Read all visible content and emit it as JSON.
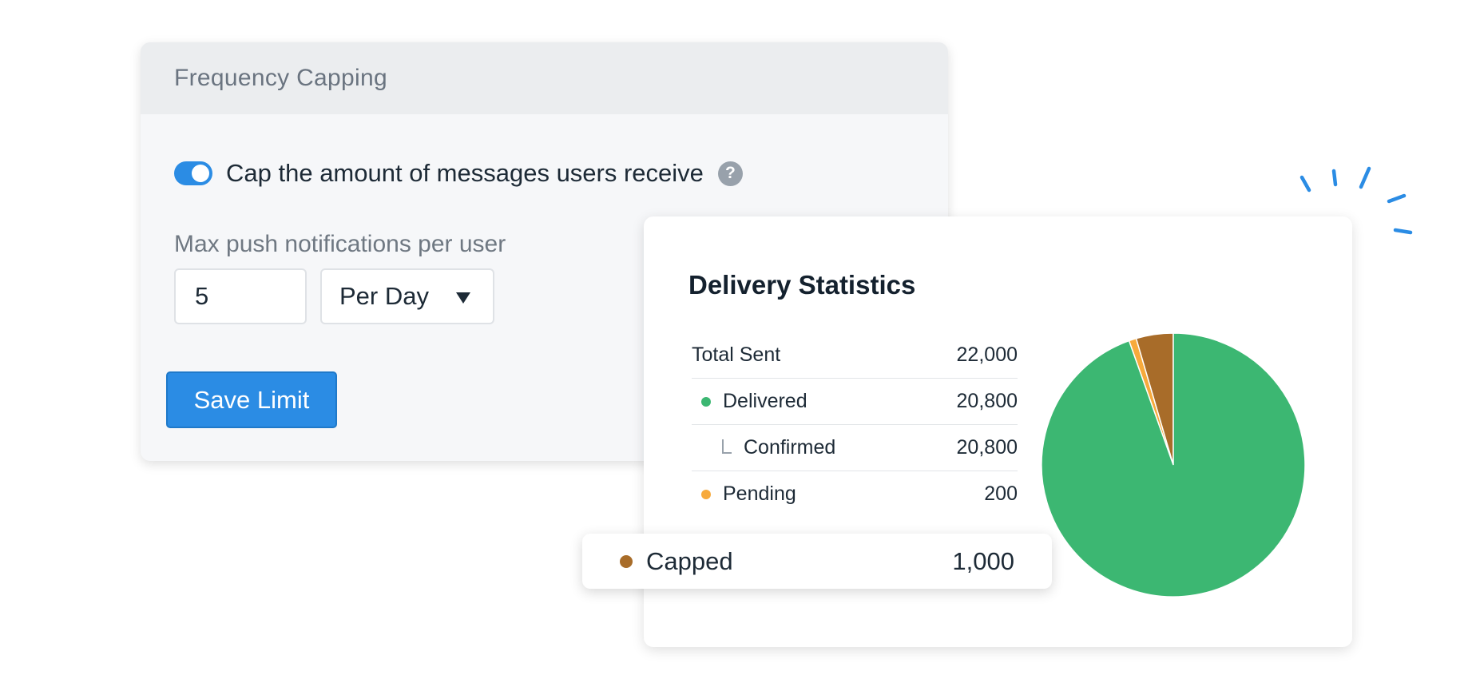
{
  "frequency_capping": {
    "title": "Frequency Capping",
    "toggle_label": "Cap the amount of messages users receive",
    "toggle_on": true,
    "help_glyph": "?",
    "max_label": "Max push notifications per user",
    "count_value": "5",
    "period_value": "Per Day",
    "save_label": "Save Limit"
  },
  "delivery_statistics": {
    "title": "Delivery Statistics",
    "rows": [
      {
        "label": "Total Sent",
        "value": "22,000",
        "marker": "none"
      },
      {
        "label": "Delivered",
        "value": "20,800",
        "marker": "dot",
        "color": "#3cb772"
      },
      {
        "label": "Confirmed",
        "value": "20,800",
        "marker": "indent"
      },
      {
        "label": "Pending",
        "value": "200",
        "marker": "dot",
        "color": "#f7aa3c"
      }
    ],
    "callout": {
      "label": "Capped",
      "value": "1,000",
      "color": "#a86c29"
    }
  },
  "chart_data": {
    "type": "pie",
    "labels": [
      "Delivered",
      "Pending",
      "Capped"
    ],
    "values": [
      20800,
      200,
      1000
    ],
    "colors": [
      "#3cb772",
      "#f7aa3c",
      "#a86c29"
    ]
  },
  "accent_color": "#2b8ce4"
}
